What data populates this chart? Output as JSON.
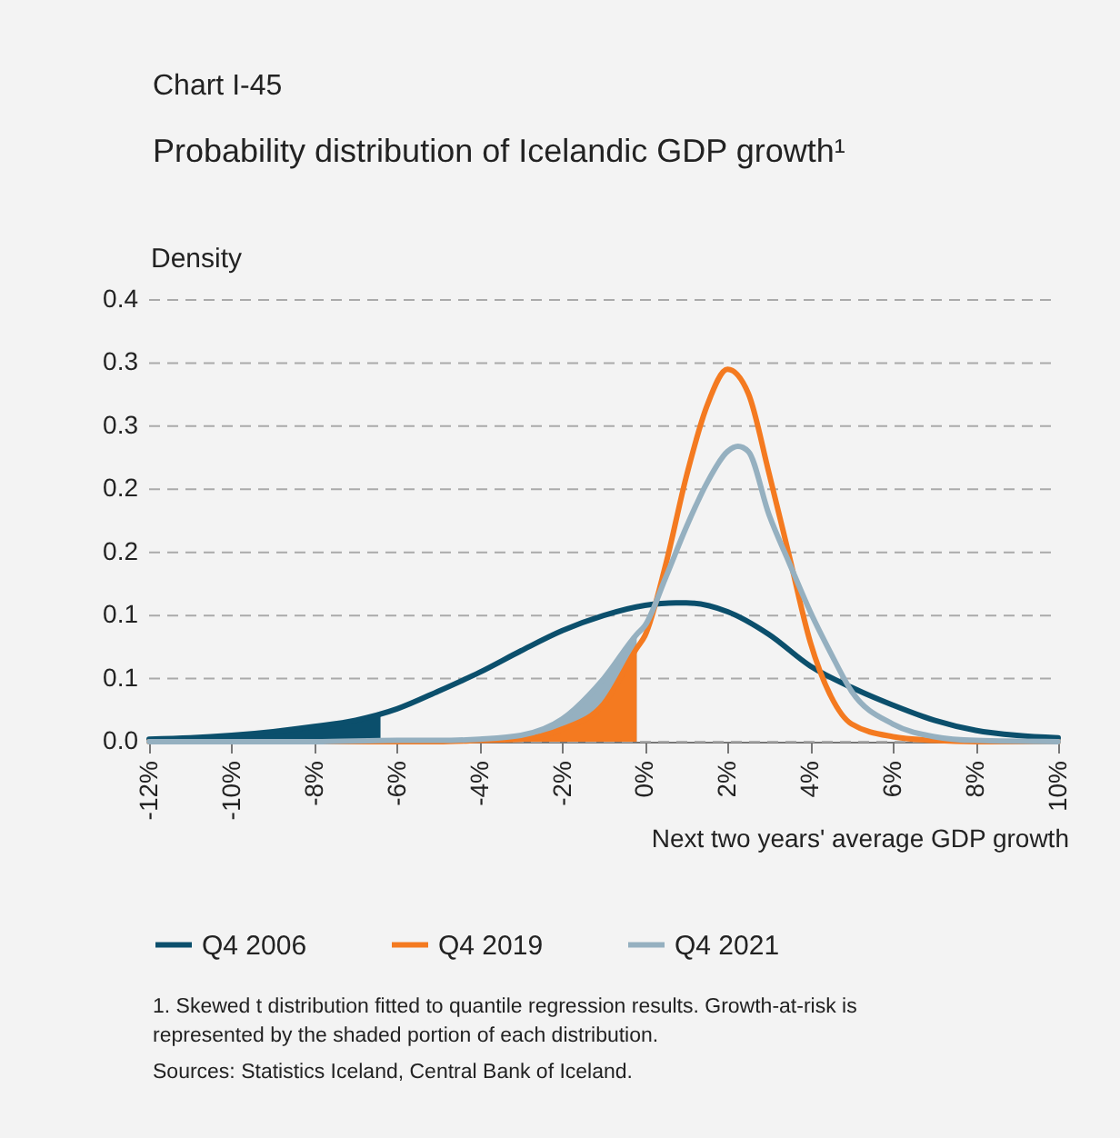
{
  "chart_data": {
    "type": "line",
    "title": "Chart I-45",
    "subtitle": "Probability distribution of Icelandic GDP growth¹",
    "ylabel": "Density",
    "xlabel": "Next two years' average GDP growth",
    "xlim": [
      -12,
      10
    ],
    "xticks": [
      {
        "value": -12,
        "label": "-12%"
      },
      {
        "value": -10,
        "label": "-10%"
      },
      {
        "value": -8,
        "label": "-8%"
      },
      {
        "value": -6,
        "label": "-6%"
      },
      {
        "value": -4,
        "label": "-4%"
      },
      {
        "value": -2,
        "label": "-2%"
      },
      {
        "value": 0,
        "label": "0%"
      },
      {
        "value": 2,
        "label": "2%"
      },
      {
        "value": 4,
        "label": "4%"
      },
      {
        "value": 6,
        "label": "6%"
      },
      {
        "value": 8,
        "label": "8%"
      },
      {
        "value": 10,
        "label": "10%"
      }
    ],
    "ylim": [
      0,
      0.35
    ],
    "yticks": [
      {
        "value": 0,
        "label": "0.0"
      },
      {
        "value": 0.05,
        "label": "0.1"
      },
      {
        "value": 0.1,
        "label": "0.1"
      },
      {
        "value": 0.15,
        "label": "0.2"
      },
      {
        "value": 0.2,
        "label": "0.2"
      },
      {
        "value": 0.25,
        "label": "0.3"
      },
      {
        "value": 0.3,
        "label": "0.3"
      },
      {
        "value": 0.35,
        "label": "0.4"
      }
    ],
    "grid": "y",
    "legend": "bottom",
    "marker": "none",
    "line_style": "solid",
    "series": [
      {
        "type": "area",
        "color": "#95b0c0",
        "x": [
          -12,
          -10,
          -8,
          -6,
          -5,
          -4,
          -3,
          -2,
          -1,
          -0.2
        ],
        "values": [
          0,
          0,
          0,
          0.001,
          0.001,
          0.002,
          0.005,
          0.018,
          0.05,
          0.085
        ]
      },
      {
        "type": "area",
        "color": "#f47a20",
        "x": [
          -12,
          -10,
          -8,
          -6,
          -5,
          -4,
          -3,
          -2,
          -1,
          -0.2
        ],
        "values": [
          0,
          0,
          0,
          0,
          0,
          0.001,
          0.002,
          0.01,
          0.03,
          0.074
        ]
      },
      {
        "type": "area",
        "color": "#0b4f6c",
        "x": [
          -12,
          -11,
          -10,
          -9,
          -8,
          -7,
          -6.4
        ],
        "values": [
          0.002,
          0.003,
          0.005,
          0.008,
          0.012,
          0.017,
          0.023
        ]
      },
      {
        "name": "Q4 2006",
        "color": "#0b4f6c",
        "x": [
          -12,
          -11,
          -10,
          -9,
          -8,
          -7,
          -6,
          -5,
          -4,
          -3,
          -2,
          -1,
          0,
          0.75,
          1,
          2,
          3,
          4,
          5,
          6,
          7,
          8,
          9,
          10
        ],
        "values": [
          0.002,
          0.003,
          0.005,
          0.008,
          0.012,
          0.017,
          0.026,
          0.04,
          0.055,
          0.072,
          0.088,
          0.1,
          0.108,
          0.11,
          0.11,
          0.103,
          0.085,
          0.06,
          0.043,
          0.029,
          0.017,
          0.009,
          0.005,
          0.003
        ]
      },
      {
        "name": "Q4 2019",
        "color": "#f47a20",
        "x": [
          -12,
          -10,
          -8,
          -6,
          -5,
          -4,
          -3,
          -2,
          -1,
          -0.2,
          0,
          0.5,
          1,
          1.5,
          2,
          2.5,
          3,
          3.5,
          4,
          4.5,
          5,
          6,
          7,
          8,
          10
        ],
        "values": [
          0,
          0,
          0,
          0,
          0,
          0.001,
          0.002,
          0.01,
          0.03,
          0.074,
          0.084,
          0.14,
          0.21,
          0.266,
          0.295,
          0.276,
          0.213,
          0.146,
          0.079,
          0.036,
          0.014,
          0.004,
          0.001,
          0,
          0
        ]
      },
      {
        "name": "Q4 2021",
        "color": "#95b0c0",
        "x": [
          -12,
          -10,
          -8,
          -6,
          -5,
          -4,
          -3,
          -2,
          -1,
          -0.2,
          0,
          0.5,
          1,
          1.5,
          2,
          2.25,
          2.5,
          3,
          3.5,
          4,
          4.5,
          5,
          6,
          7,
          8,
          10
        ],
        "values": [
          0,
          0,
          0,
          0.001,
          0.001,
          0.002,
          0.005,
          0.018,
          0.05,
          0.085,
          0.092,
          0.13,
          0.17,
          0.205,
          0.23,
          0.234,
          0.23,
          0.18,
          0.141,
          0.103,
          0.07,
          0.04,
          0.014,
          0.004,
          0.001,
          0
        ]
      }
    ],
    "annotations": [
      "1. Skewed t distribution fitted to quantile regression results. Growth-at-risk is represented by the shaded portion of each distribution.",
      "Sources: Statistics Iceland, Central Bank of Iceland."
    ]
  }
}
